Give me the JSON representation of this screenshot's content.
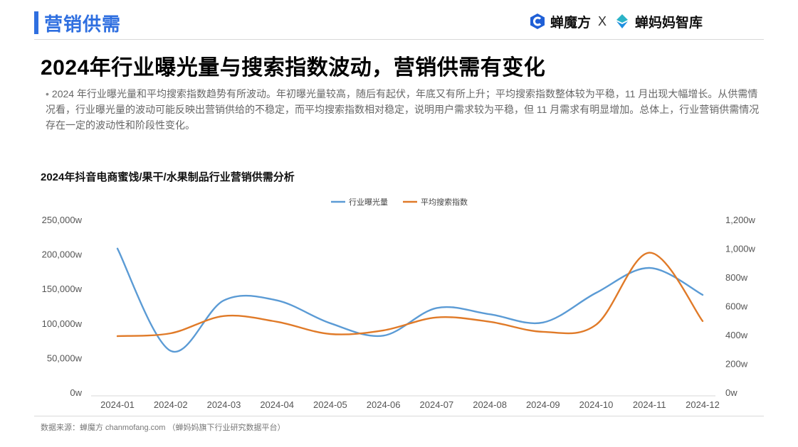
{
  "header": {
    "section": "营销供需",
    "brand_primary": "蝉魔方",
    "brand_separator": "X",
    "brand_secondary": "蝉妈妈智库"
  },
  "title": "2024年行业曝光量与搜索指数波动，营销供需有变化",
  "summary": "2024 年行业曝光量和平均搜索指数趋势有所波动。年初曝光量较高，随后有起伏，年底又有所上升；平均搜索指数整体较为平稳，11 月出现大幅增长。从供需情况看，行业曝光量的波动可能反映出营销供给的不稳定，而平均搜索指数相对稳定，说明用户需求较为平稳，但 11 月需求有明显增加。总体上，行业营销供需情况存在一定的波动性和阶段性变化。",
  "summary_bullet": "•",
  "chart_data": {
    "type": "line",
    "title": "2024年抖音电商蜜饯/果干/水果制品行业营销供需分析",
    "categories": [
      "2024-01",
      "2024-02",
      "2024-03",
      "2024-04",
      "2024-05",
      "2024-06",
      "2024-07",
      "2024-08",
      "2024-09",
      "2024-10",
      "2024-11",
      "2024-12"
    ],
    "series": [
      {
        "name": "行业曝光量",
        "axis": "left",
        "color": "#5b9bd5",
        "values": [
          208000,
          60000,
          133000,
          133000,
          100000,
          82000,
          122000,
          113000,
          101000,
          144000,
          180000,
          141000
        ]
      },
      {
        "name": "平均搜索指数",
        "axis": "right",
        "color": "#e07a28",
        "values": [
          390,
          410,
          530,
          490,
          405,
          430,
          520,
          490,
          420,
          470,
          970,
          495
        ]
      }
    ],
    "y_left": {
      "ylim": [
        0,
        250000
      ],
      "ticks": [
        0,
        50000,
        100000,
        150000,
        200000,
        250000
      ],
      "tick_labels": [
        "0w",
        "50,000w",
        "100,000w",
        "150,000w",
        "200,000w",
        "250,000w"
      ]
    },
    "y_right": {
      "ylim": [
        0,
        1200
      ],
      "ticks": [
        0,
        200,
        400,
        600,
        800,
        1000,
        1200
      ],
      "tick_labels": [
        "0w",
        "200w",
        "400w",
        "600w",
        "800w",
        "1,000w",
        "1,200w"
      ]
    },
    "grid": false,
    "legend_position": "top-center"
  },
  "footer": {
    "source": "数据来源：蝉魔方 chanmofang.com （蝉妈妈旗下行业研究数据平台）"
  }
}
